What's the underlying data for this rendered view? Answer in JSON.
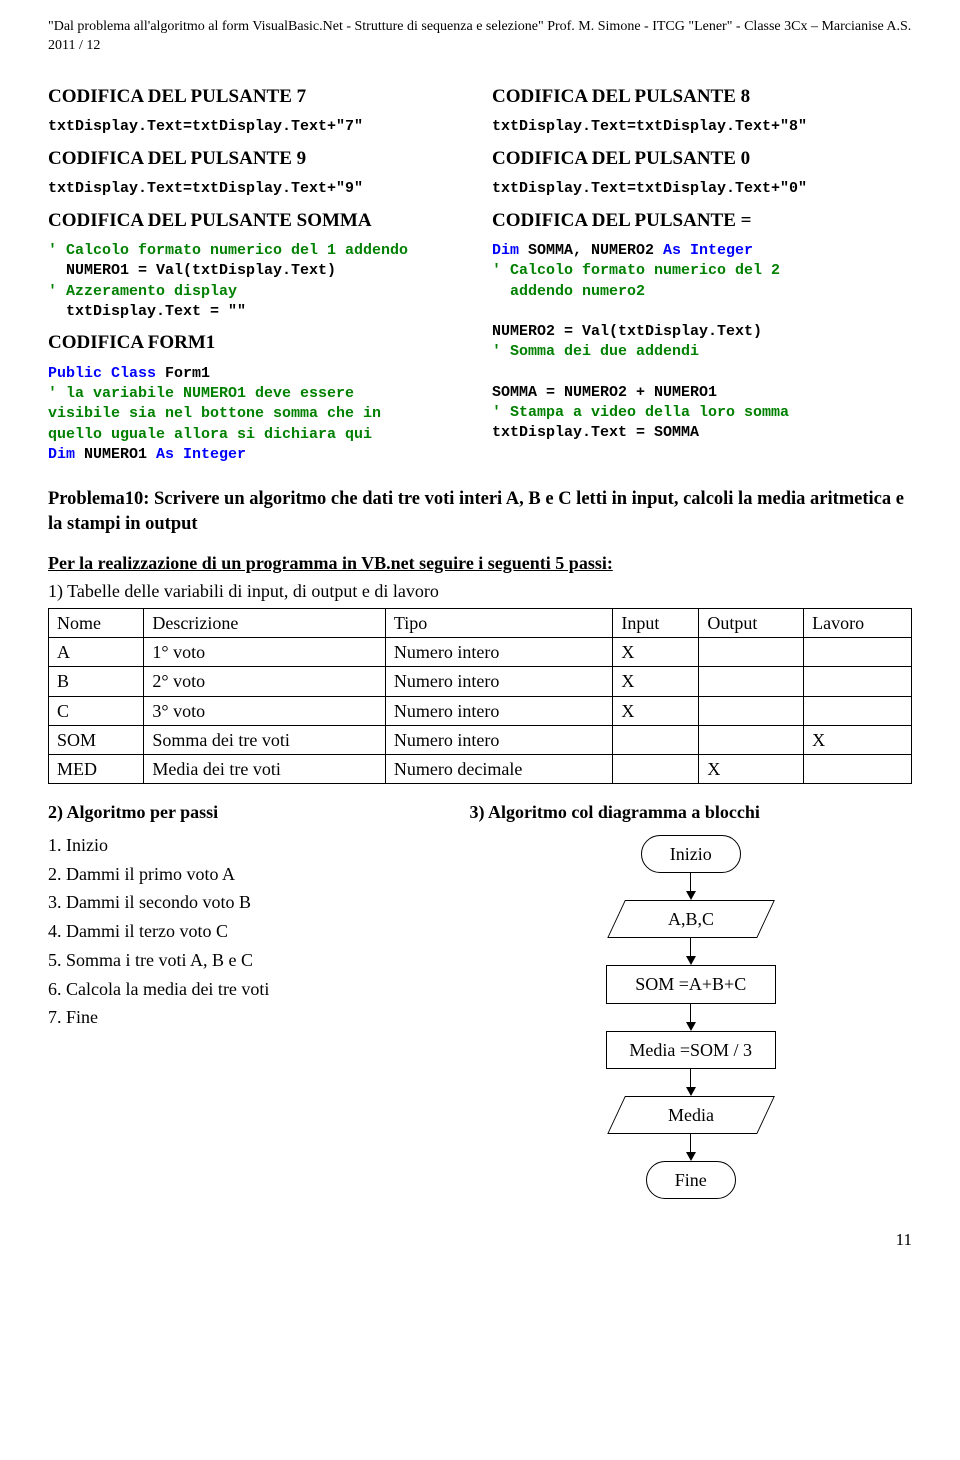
{
  "header": {
    "text": "\"Dal problema all'algoritmo al form VisualBasic.Net - Strutture di sequenza e selezione\" Prof.  M. Simone  - ITCG \"Lener\"  - Classe 3Cx – Marcianise A.S. 2011 / 12"
  },
  "left_col": {
    "s7_title": "CODIFICA DEL PULSANTE 7",
    "s7_code": "txtDisplay.Text=txtDisplay.Text+\"7\"",
    "s9_title": "CODIFICA DEL PULSANTE 9",
    "s9_code": "txtDisplay.Text=txtDisplay.Text+\"9\"",
    "somma_title": "CODIFICA DEL PULSANTE SOMMA",
    "c1": "' Calcolo formato numerico del 1 addendo",
    "l1": "  NUMERO1 = Val(txtDisplay.Text)",
    "c2": "' Azzeramento display",
    "l2": "  txtDisplay.Text = \"\"",
    "form1_title": "CODIFICA FORM1",
    "f1": "Public Class",
    "f1b": " Form1",
    "fc1": "' la variabile NUMERO1 deve essere",
    "fc2": "visibile sia nel bottone somma che in",
    "fc3": "quello uguale allora si dichiara qui",
    "fk1": "Dim",
    "fl1": " NUMERO1 ",
    "fk2": "As Integer"
  },
  "right_col": {
    "s8_title": "CODIFICA DEL PULSANTE 8",
    "s8_code": "txtDisplay.Text=txtDisplay.Text+\"8\"",
    "s0_title": "CODIFICA DEL PULSANTE 0",
    "s0_code": "txtDisplay.Text=txtDisplay.Text+\"0\"",
    "eq_title": "CODIFICA DEL PULSANTE =",
    "ek1": "Dim",
    "el1": " SOMMA, NUMERO2 ",
    "ek2": "As Integer",
    "ec1": "' Calcolo formato numerico del 2",
    "ec1b": "  addendo numero2",
    "el2": "NUMERO2 = Val(txtDisplay.Text)",
    "ec2": "' Somma dei due addendi",
    "el3": "SOMMA = NUMERO2 + NUMERO1",
    "ec3": "' Stampa a video della loro somma",
    "el4": "txtDisplay.Text = SOMMA"
  },
  "problema": "Problema10: Scrivere un algoritmo che dati  tre voti interi A, B e C letti in input, calcoli la media aritmetica e la stampi in output",
  "vb_header": "Per la realizzazione di un programma in VB.net seguire i seguenti 5 passi:",
  "table_title": "1) Tabelle delle variabili di input, di output e di lavoro",
  "table": {
    "cols": [
      "Nome",
      "Descrizione",
      "Tipo",
      "Input",
      "Output",
      "Lavoro"
    ],
    "rows": [
      [
        "A",
        "1° voto",
        "Numero intero",
        "X",
        "",
        ""
      ],
      [
        "B",
        "2° voto",
        "Numero intero",
        "X",
        "",
        ""
      ],
      [
        "C",
        "3° voto",
        "Numero intero",
        "X",
        "",
        ""
      ],
      [
        "SOM",
        "Somma dei tre voti",
        "Numero intero",
        "",
        "",
        "X"
      ],
      [
        "MED",
        "Media dei tre voti",
        "Numero decimale",
        "",
        "X",
        ""
      ]
    ]
  },
  "algo_steps_title": "2) Algoritmo per passi",
  "algo_steps": [
    "1. Inizio",
    "2. Dammi il primo voto A",
    "3. Dammi il secondo voto B",
    "4. Dammi il terzo voto C",
    "5. Somma i tre voti A, B e C",
    "6. Calcola la media dei tre voti",
    "7. Fine"
  ],
  "flowchart_title": "3) Algoritmo col diagramma a blocchi",
  "flowchart": {
    "nodes": [
      {
        "type": "terminal",
        "label": "Inizio"
      },
      {
        "type": "io",
        "label": "A,B,C"
      },
      {
        "type": "process",
        "label": "SOM =A+B+C"
      },
      {
        "type": "process",
        "label": "Media =SOM / 3"
      },
      {
        "type": "io",
        "label": "Media"
      },
      {
        "type": "terminal",
        "label": "Fine"
      }
    ]
  },
  "page_number": "11"
}
